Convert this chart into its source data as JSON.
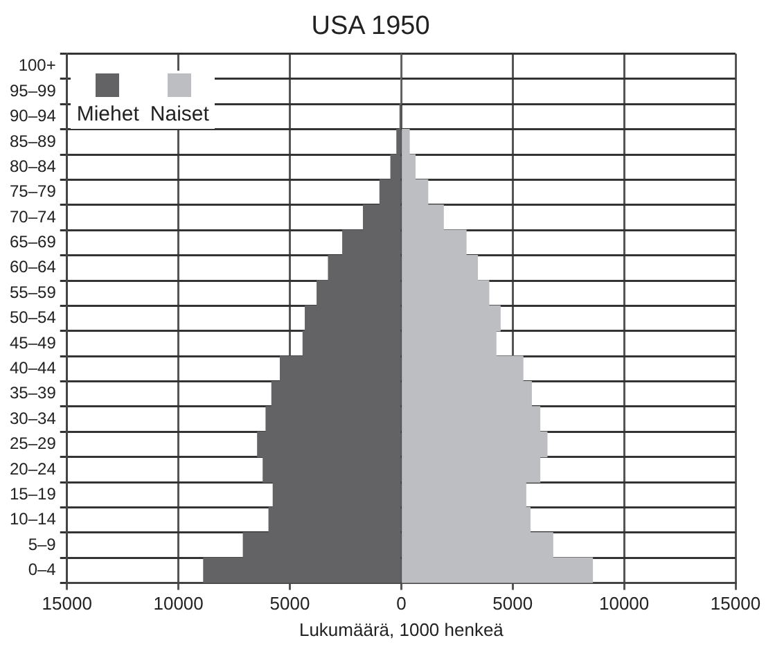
{
  "chart_data": {
    "type": "bar",
    "orientation": "horizontal",
    "stacked": true,
    "title": "USA 1950",
    "xlabel": "Lukumäärä, 1000 henkeä",
    "categories": [
      "100+",
      "95–99",
      "90–94",
      "85–89",
      "80–84",
      "75–79",
      "70–74",
      "65–69",
      "60–64",
      "55–59",
      "50–54",
      "45–49",
      "40–44",
      "35–39",
      "30–34",
      "25–29",
      "20–24",
      "15–19",
      "10–14",
      "5–9",
      "0–4"
    ],
    "series": [
      {
        "name": "Miehet",
        "color": "#636365",
        "values": [
          0,
          0,
          -60,
          -200,
          -470,
          -960,
          -1700,
          -2630,
          -3270,
          -3780,
          -4310,
          -4410,
          -5430,
          -5810,
          -6070,
          -6450,
          -6200,
          -5750,
          -5940,
          -7090,
          -8870
        ]
      },
      {
        "name": "Naiset",
        "color": "#bdbec2",
        "values": [
          0,
          0,
          null,
          360,
          620,
          1190,
          1890,
          2910,
          3420,
          3930,
          4440,
          4250,
          5460,
          5840,
          6220,
          6540,
          6220,
          5590,
          5780,
          6800,
          8580
        ]
      }
    ],
    "xlim": [
      -15000,
      15000
    ],
    "xticks": [
      {
        "value": -15000,
        "label": "15000"
      },
      {
        "value": -10000,
        "label": "10000"
      },
      {
        "value": -5000,
        "label": "5000"
      },
      0,
      5000,
      10000,
      15000
    ],
    "grid": true,
    "legend": "top left"
  }
}
